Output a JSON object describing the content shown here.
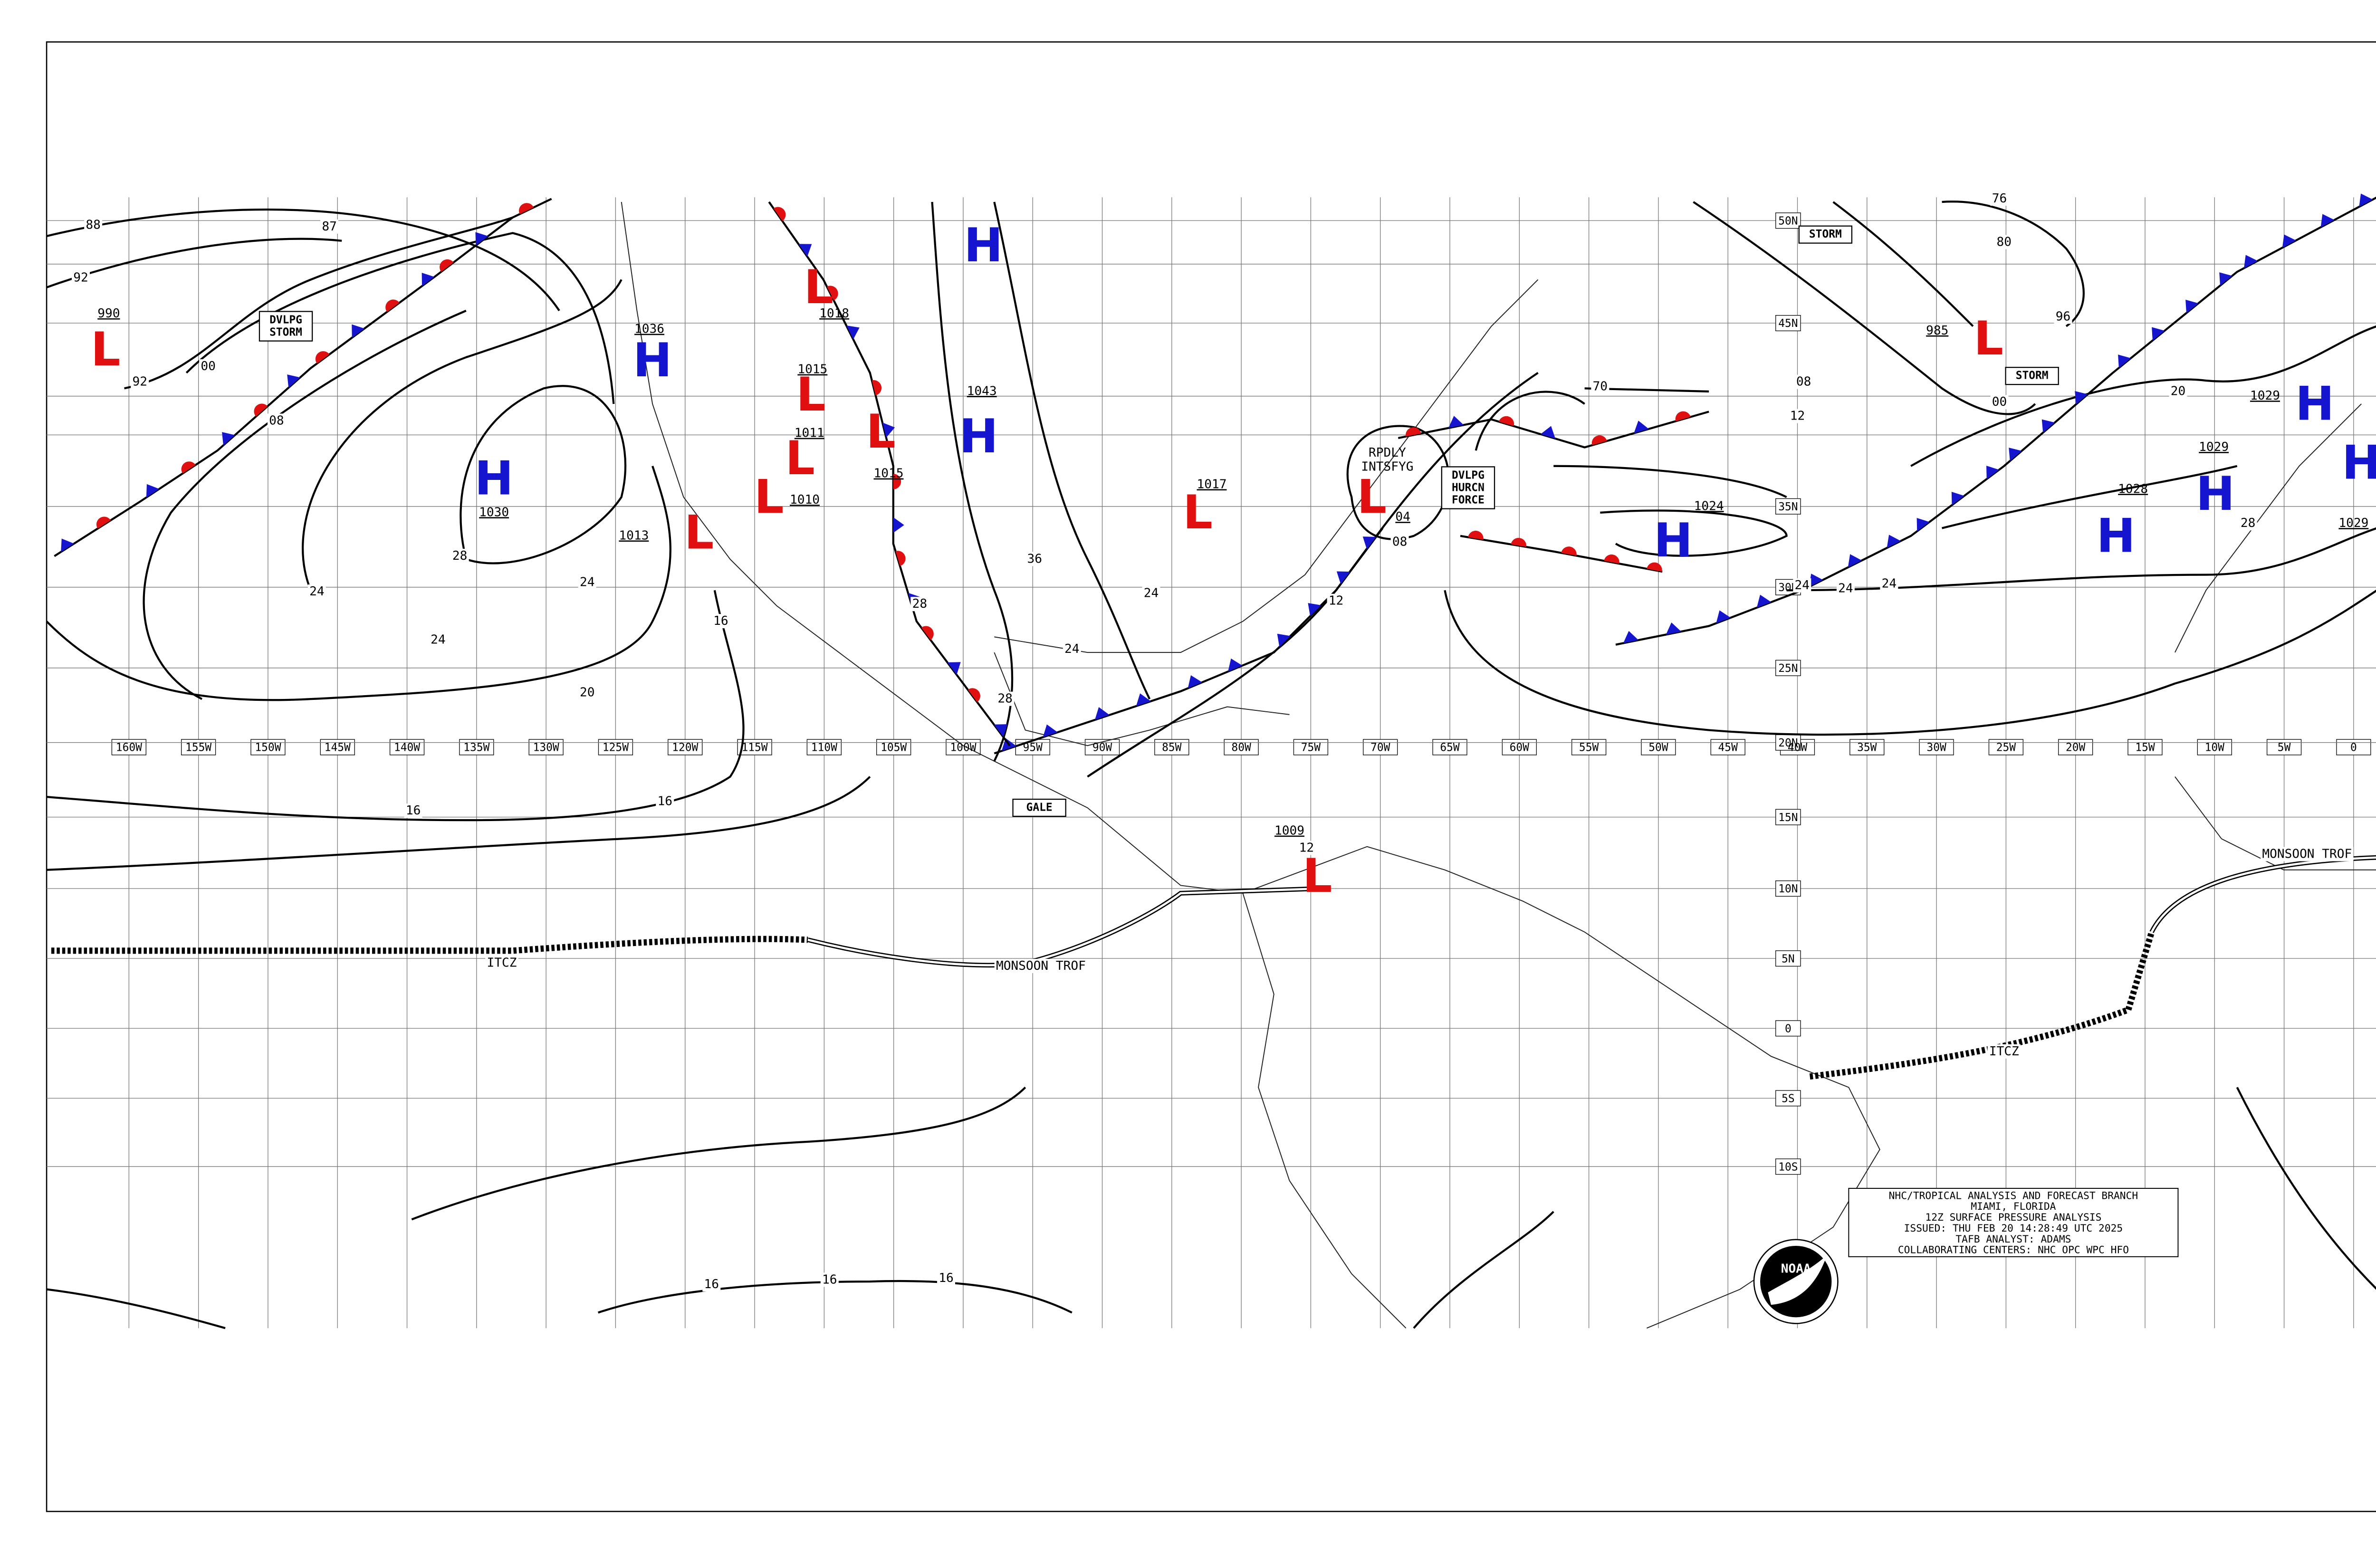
{
  "header_box": {
    "lines": [
      "NHC/TROPICAL ANALYSIS AND FORECAST BRANCH",
      "MIAMI, FLORIDA",
      "12Z SURFACE PRESSURE ANALYSIS",
      "ISSUED: THU FEB 20 14:28:49 UTC 2025",
      "TAFB ANALYST: ADAMS",
      "COLLABORATING CENTERS: NHC OPC WPC HFO"
    ],
    "logo": "NOAA"
  },
  "longitude_labels": [
    "160W",
    "155W",
    "150W",
    "145W",
    "140W",
    "135W",
    "130W",
    "125W",
    "120W",
    "115W",
    "110W",
    "105W",
    "100W",
    "95W",
    "90W",
    "85W",
    "80W",
    "75W",
    "70W",
    "65W",
    "60W",
    "55W",
    "50W",
    "45W",
    "40W",
    "35W",
    "30W",
    "25W",
    "20W",
    "15W",
    "10W",
    "5W",
    "0"
  ],
  "latitude_labels": [
    "50N",
    "45N",
    "35N",
    "30N",
    "25N",
    "20N",
    "15N",
    "10N",
    "5N",
    "0",
    "5S",
    "10S"
  ],
  "highs": [
    {
      "symbol": "H",
      "pressure": "1030"
    },
    {
      "symbol": "H",
      "pressure": "1036"
    },
    {
      "symbol": "H",
      "pressure": "1043"
    },
    {
      "symbol": "H",
      "pressure": "1024"
    },
    {
      "symbol": "H",
      "pressure": "1028"
    },
    {
      "symbol": "H",
      "pressure": "1029"
    },
    {
      "symbol": "H",
      "pressure": "1029"
    },
    {
      "symbol": "H",
      "pressure": "1029"
    }
  ],
  "lows": [
    {
      "symbol": "L",
      "pressure": "990"
    },
    {
      "symbol": "L",
      "pressure": "1018"
    },
    {
      "symbol": "L",
      "pressure": "1015"
    },
    {
      "symbol": "L",
      "pressure": "1011"
    },
    {
      "symbol": "L",
      "pressure": "1010"
    },
    {
      "symbol": "L",
      "pressure": "1013"
    },
    {
      "symbol": "L",
      "pressure": "1015"
    },
    {
      "symbol": "L",
      "pressure": "1017"
    },
    {
      "symbol": "L",
      "pressure": "04"
    },
    {
      "symbol": "L",
      "pressure": "985"
    },
    {
      "symbol": "L",
      "pressure": "1009"
    }
  ],
  "warnings": [
    "DVLPG STORM",
    "STORM",
    "STORM",
    "GALE",
    "DVLPG HURCN FORCE"
  ],
  "annotations": [
    "RPDLY INTSFYG",
    "ITCZ",
    "MONSOON TROF",
    "ITCZ",
    "MONSOON TROF"
  ],
  "isobar_labels": [
    "88",
    "92",
    "87",
    "00",
    "08",
    "92",
    "28",
    "24",
    "24",
    "24",
    "20",
    "16",
    "16",
    "16",
    "16",
    "16",
    "16",
    "70",
    "76",
    "80",
    "96",
    "00",
    "08",
    "12",
    "20",
    "28",
    "24",
    "24",
    "24",
    "12",
    "24",
    "24",
    "28",
    "28",
    "36",
    "12",
    "08"
  ]
}
